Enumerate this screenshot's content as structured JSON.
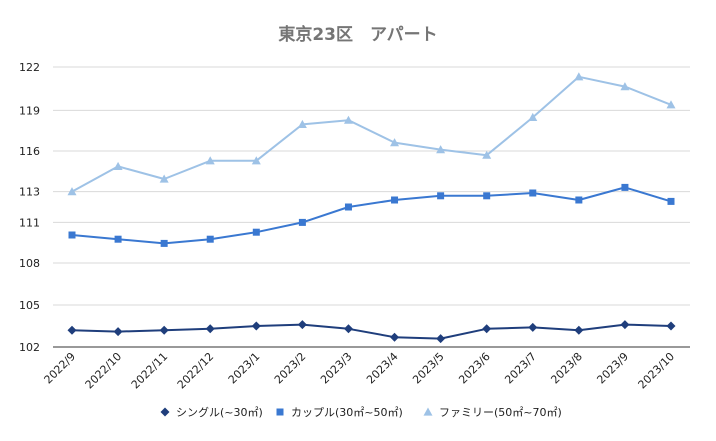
{
  "chart_data": {
    "type": "line",
    "title": "東京23区　アパート",
    "xlabel": "",
    "ylabel": "",
    "categories": [
      "2022/9",
      "2022/10",
      "2022/11",
      "2022/12",
      "2023/1",
      "2023/2",
      "2023/3",
      "2023/4",
      "2023/5",
      "2023/6",
      "2023/7",
      "2023/8",
      "2023/9",
      "2023/10"
    ],
    "yticks": [
      102,
      105,
      108,
      111,
      113,
      116,
      119,
      122
    ],
    "ylim": [
      102,
      122
    ],
    "grid": true,
    "legend_position": "bottom",
    "series": [
      {
        "name": "シングル(~30㎡)",
        "color": "#1f3e7c",
        "marker": "diamond",
        "values": [
          103.2,
          103.1,
          103.2,
          103.3,
          103.5,
          103.6,
          103.3,
          102.7,
          102.6,
          103.3,
          103.4,
          103.2,
          103.6,
          103.5
        ]
      },
      {
        "name": "カップル(30㎡~50㎡)",
        "color": "#3a78d1",
        "marker": "square",
        "values": [
          110.0,
          109.7,
          109.4,
          109.7,
          110.2,
          110.9,
          112.0,
          112.5,
          112.8,
          112.8,
          113.0,
          112.5,
          113.4,
          112.4
        ]
      },
      {
        "name": "ファミリー(50㎡~70㎡)",
        "color": "#9ec2e6",
        "marker": "triangle",
        "values": [
          113.1,
          114.9,
          114.0,
          115.3,
          115.3,
          117.9,
          118.2,
          116.6,
          116.1,
          115.7,
          118.4,
          121.3,
          120.6,
          119.3
        ]
      }
    ]
  }
}
